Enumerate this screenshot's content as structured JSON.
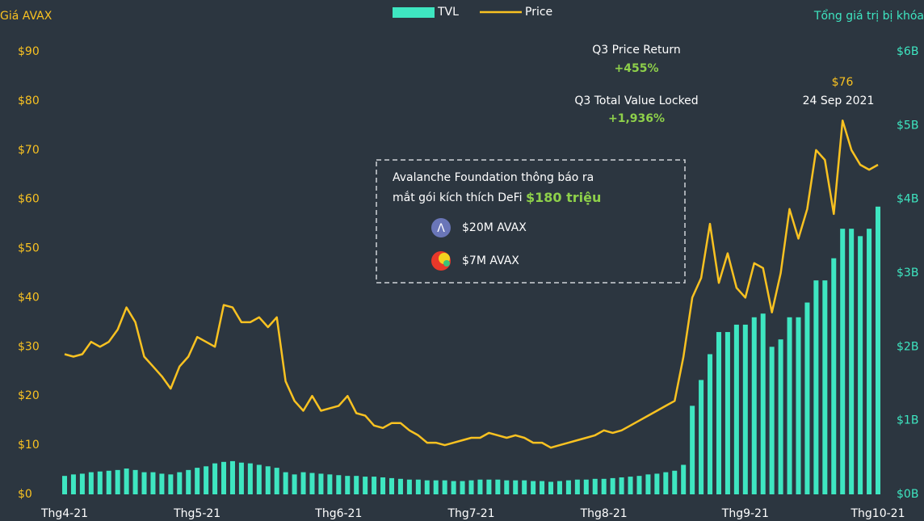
{
  "chart_data": {
    "type": "bar_line",
    "y_label": "Giá AVAX",
    "y2_label": "Tổng giá trị bị khóa",
    "annotations": {
      "price_return_label": "Q3 Price Return",
      "price_return": "+455%",
      "tvl_label": "Q3 Total Value Locked",
      "tvl": "+1,936%",
      "peak": "$76",
      "peak_date": "24 Sep 2021",
      "box_text_1": "Avalanche Foundation thông báo ra",
      "box_text_2": "mắt gói kích thích DeFi",
      "box_amount": "$180 triệu",
      "item_1": "$20M AVAX",
      "item_2": "$7M AVAX"
    },
    "categories": [
      "Thg4-21",
      null,
      null,
      null,
      null,
      null,
      null,
      null,
      null,
      null,
      null,
      null,
      null,
      null,
      null,
      "Thg5-21",
      null,
      null,
      null,
      null,
      null,
      null,
      null,
      null,
      null,
      null,
      null,
      null,
      null,
      null,
      null,
      "Thg6-21",
      null,
      null,
      null,
      null,
      null,
      null,
      null,
      null,
      null,
      null,
      null,
      null,
      null,
      null,
      "Thg7-21",
      null,
      null,
      null,
      null,
      null,
      null,
      null,
      null,
      null,
      null,
      null,
      null,
      null,
      null,
      "Thg8-21",
      null,
      null,
      null,
      null,
      null,
      null,
      null,
      null,
      null,
      null,
      null,
      null,
      null,
      null,
      null,
      "Thg9-21",
      null,
      null,
      null,
      null,
      null,
      null,
      null,
      null,
      null,
      null,
      null,
      null,
      null,
      null,
      "Thg10-21"
    ],
    "series": [
      {
        "name": "TVL",
        "kind": "bar",
        "axis": "y2",
        "color": "#3ee6c1",
        "values": [
          0.25,
          0.27,
          0.28,
          0.3,
          0.31,
          0.32,
          0.33,
          0.35,
          0.33,
          0.3,
          0.3,
          0.28,
          0.27,
          0.3,
          0.33,
          0.36,
          0.38,
          0.42,
          0.44,
          0.45,
          0.43,
          0.42,
          0.4,
          0.38,
          0.36,
          0.3,
          0.27,
          0.3,
          0.29,
          0.28,
          0.27,
          0.26,
          0.25,
          0.25,
          0.24,
          0.24,
          0.23,
          0.22,
          0.21,
          0.2,
          0.2,
          0.19,
          0.19,
          0.19,
          0.18,
          0.18,
          0.19,
          0.2,
          0.2,
          0.2,
          0.19,
          0.19,
          0.19,
          0.18,
          0.18,
          0.17,
          0.18,
          0.19,
          0.2,
          0.2,
          0.21,
          0.21,
          0.22,
          0.23,
          0.24,
          0.25,
          0.27,
          0.28,
          0.3,
          0.32,
          0.4,
          1.2,
          1.55,
          1.9,
          2.2,
          2.2,
          2.3,
          2.3,
          2.4,
          2.45,
          2.0,
          2.1,
          2.4,
          2.4,
          2.6,
          2.9,
          2.9,
          3.2,
          3.6,
          3.6,
          3.5,
          3.6,
          3.9
        ]
      },
      {
        "name": "Price",
        "kind": "line",
        "axis": "y",
        "color": "#f9c221",
        "values": [
          28.5,
          28,
          28.5,
          31,
          30,
          31,
          33.5,
          38,
          35,
          28,
          26,
          24,
          21.5,
          26,
          28,
          32,
          31,
          30,
          38.5,
          38,
          35,
          35,
          36,
          34,
          36,
          23,
          19,
          17,
          20,
          17,
          17.5,
          18,
          20,
          16.5,
          16,
          14,
          13.5,
          14.5,
          14.5,
          13,
          12,
          10.5,
          10.5,
          10,
          10.5,
          11,
          11.5,
          11.5,
          12.5,
          12,
          11.5,
          12,
          11.5,
          10.5,
          10.5,
          9.5,
          10,
          10.5,
          11,
          11.5,
          12,
          13,
          12.5,
          13,
          14,
          15,
          16,
          17,
          18,
          19,
          28,
          40,
          44,
          55,
          43,
          49,
          42,
          40,
          47,
          46,
          37,
          45,
          58,
          52,
          58,
          70,
          68,
          57,
          76,
          70,
          67,
          66,
          67
        ]
      }
    ],
    "ylim": [
      0,
      90
    ],
    "yticks": [
      {
        "value": 0,
        "label": "$0"
      },
      {
        "value": 10,
        "label": "$10"
      },
      {
        "value": 20,
        "label": "$20"
      },
      {
        "value": 30,
        "label": "$30"
      },
      {
        "value": 40,
        "label": "$40"
      },
      {
        "value": 50,
        "label": "$50"
      },
      {
        "value": 60,
        "label": "$60"
      },
      {
        "value": 70,
        "label": "$70"
      },
      {
        "value": 80,
        "label": "$80"
      },
      {
        "value": 90,
        "label": "$90"
      }
    ],
    "y2lim": [
      0,
      6
    ],
    "y2ticks": [
      {
        "value": 0,
        "label": "$0B"
      },
      {
        "value": 1,
        "label": "$1B"
      },
      {
        "value": 2,
        "label": "$2B"
      },
      {
        "value": 3,
        "label": "$3B"
      },
      {
        "value": 4,
        "label": "$4B"
      },
      {
        "value": 5,
        "label": "$5B"
      },
      {
        "value": 6,
        "label": "$6B"
      }
    ],
    "grid": false
  }
}
